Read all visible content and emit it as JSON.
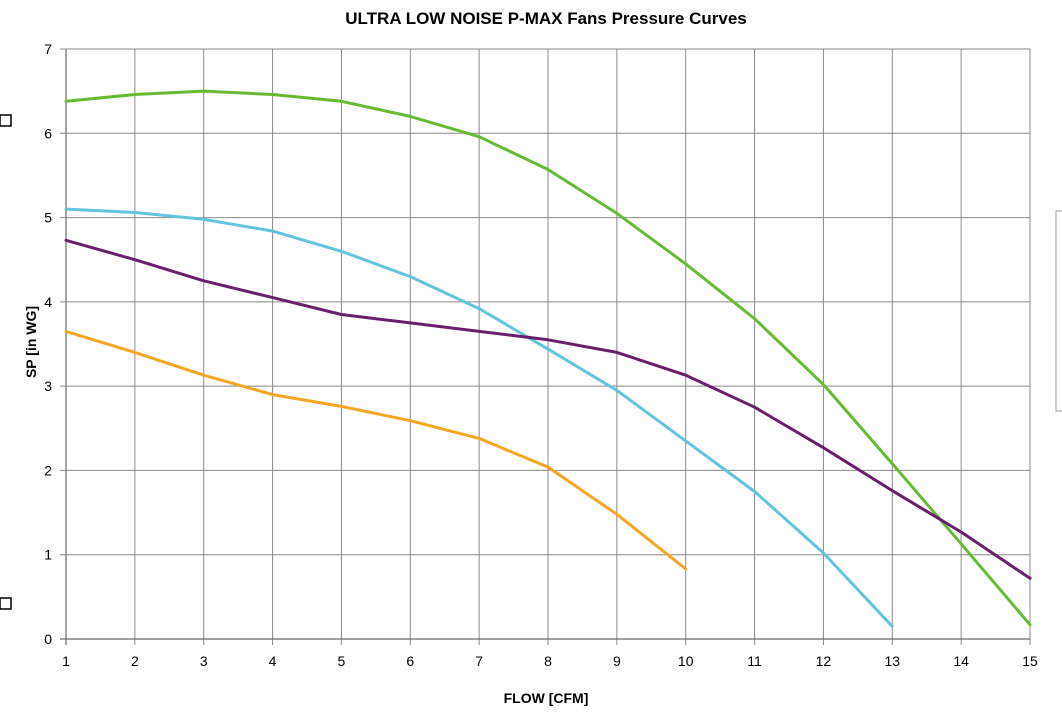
{
  "chart_data": {
    "type": "line",
    "title": "ULTRA LOW NOISE P-MAX Fans Pressure Curves",
    "xlabel": "FLOW [CFM]",
    "ylabel": "SP [in WG]",
    "xlim": [
      1,
      15
    ],
    "ylim": [
      0,
      7
    ],
    "x_ticks": [
      1,
      2,
      3,
      4,
      5,
      6,
      7,
      8,
      9,
      10,
      11,
      12,
      13,
      14,
      15
    ],
    "y_ticks": [
      0,
      1,
      2,
      3,
      4,
      5,
      6,
      7
    ],
    "grid": true,
    "legend": "right, partially cropped",
    "series": [
      {
        "color": "#66bb33",
        "x": [
          1,
          2,
          3,
          4,
          5,
          6,
          7,
          8,
          9,
          10,
          11,
          12,
          13,
          14,
          15
        ],
        "values": [
          6.38,
          6.46,
          6.5,
          6.46,
          6.38,
          6.2,
          5.96,
          5.57,
          5.05,
          4.45,
          3.8,
          3.02,
          2.08,
          1.13,
          0.17
        ]
      },
      {
        "color": "#62c4dd",
        "x": [
          1,
          2,
          3,
          4,
          5,
          6,
          7,
          8,
          9,
          10,
          11,
          12,
          13
        ],
        "values": [
          5.1,
          5.06,
          4.98,
          4.84,
          4.6,
          4.3,
          3.92,
          3.44,
          2.95,
          2.35,
          1.75,
          1.02,
          0.15
        ]
      },
      {
        "color": "#6a1f6e",
        "x": [
          1,
          2,
          3,
          4,
          5,
          6,
          7,
          8,
          9,
          10,
          11,
          12,
          13,
          14,
          15
        ],
        "values": [
          4.73,
          4.5,
          4.25,
          4.05,
          3.85,
          3.75,
          3.65,
          3.55,
          3.4,
          3.13,
          2.75,
          2.27,
          1.76,
          1.27,
          0.72
        ]
      },
      {
        "color": "#f5a623",
        "x": [
          1,
          2,
          3,
          4,
          5,
          6,
          7,
          8,
          9,
          10
        ],
        "values": [
          3.65,
          3.4,
          3.13,
          2.9,
          2.76,
          2.59,
          2.38,
          2.04,
          1.48,
          0.83
        ]
      }
    ]
  }
}
